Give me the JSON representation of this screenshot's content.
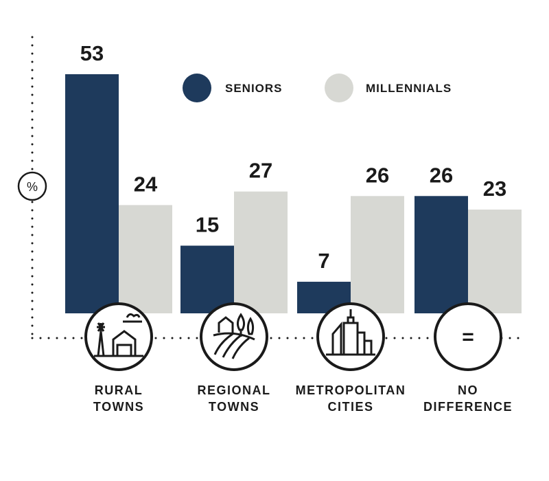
{
  "chart_data": {
    "type": "bar",
    "title": "",
    "xlabel": "",
    "ylabel": "%",
    "ylim": [
      0,
      53
    ],
    "grid": false,
    "legend_position": "top-right",
    "categories": [
      {
        "line1": "RURAL",
        "line2": "TOWNS",
        "icon": "farm-icon"
      },
      {
        "line1": "REGIONAL",
        "line2": "TOWNS",
        "icon": "regional-town-icon"
      },
      {
        "line1": "METROPOLITAN",
        "line2": "CITIES",
        "icon": "city-icon"
      },
      {
        "line1": "NO",
        "line2": "DIFFERENCE",
        "icon": "equals-icon"
      }
    ],
    "series": [
      {
        "name": "SENIORS",
        "color": "#1e3a5c",
        "values": [
          53,
          15,
          7,
          26
        ]
      },
      {
        "name": "MILLENNIALS",
        "color": "#d7d8d3",
        "values": [
          24,
          27,
          26,
          23
        ]
      }
    ],
    "equals_symbol": "="
  }
}
